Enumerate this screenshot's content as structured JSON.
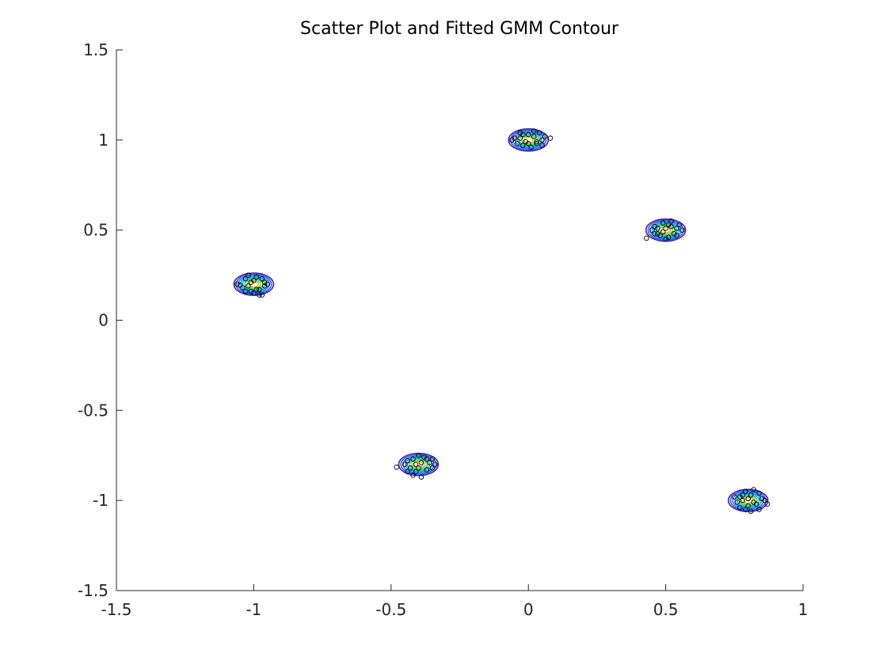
{
  "chart_data": {
    "type": "scatter",
    "title": "Scatter Plot and Fitted GMM Contour",
    "xlabel": "",
    "ylabel": "",
    "xlim": [
      -1.5,
      1
    ],
    "ylim": [
      -1.5,
      1.5
    ],
    "xticks": [
      -1.5,
      -1,
      -0.5,
      0,
      0.5,
      1
    ],
    "yticks": [
      -1.5,
      -1,
      -0.5,
      0,
      0.5,
      1,
      1.5
    ],
    "xtick_labels": [
      "-1.5",
      "-1",
      "-0.5",
      "0",
      "0.5",
      "1"
    ],
    "ytick_labels": [
      "-1.5",
      "-1",
      "-0.5",
      "0",
      "0.5",
      "1",
      "1.5"
    ],
    "grid": false,
    "box": "off",
    "point_marker": "open-circle",
    "point_color": "#000000",
    "contour_colormap": [
      "#3e26a8",
      "#4253e9",
      "#2b7ffd",
      "#13a3dc",
      "#1cbcb0",
      "#40c888",
      "#8ecb5d",
      "#d7c23b"
    ],
    "clusters": [
      {
        "center": [
          -1.0,
          0.2
        ],
        "points": [
          [
            -1.05,
            0.195
          ],
          [
            -0.96,
            0.21
          ],
          [
            -1.03,
            0.23
          ],
          [
            -0.98,
            0.17
          ],
          [
            -1.01,
            0.16
          ],
          [
            -0.97,
            0.14
          ],
          [
            -1.02,
            0.25
          ],
          [
            -0.99,
            0.24
          ],
          [
            -1.04,
            0.18
          ],
          [
            -0.95,
            0.2
          ],
          [
            -1.0,
            0.15
          ],
          [
            -0.97,
            0.23
          ],
          [
            -1.03,
            0.16
          ],
          [
            -1.06,
            0.2
          ],
          [
            -0.96,
            0.19
          ],
          [
            -1.0,
            0.22
          ],
          [
            -0.98,
            0.14
          ],
          [
            -1.02,
            0.19
          ],
          [
            -0.99,
            0.17
          ],
          [
            -1.01,
            0.21
          ]
        ]
      },
      {
        "center": [
          0.0,
          1.0
        ],
        "points": [
          [
            -0.05,
            1.01
          ],
          [
            0.06,
            1.02
          ],
          [
            -0.03,
            1.04
          ],
          [
            0.03,
            0.98
          ],
          [
            0.08,
            1.01
          ],
          [
            0.02,
            1.05
          ],
          [
            -0.02,
            0.97
          ],
          [
            0.05,
            0.97
          ],
          [
            -0.04,
            0.98
          ],
          [
            0.0,
            1.03
          ],
          [
            0.04,
            1.04
          ],
          [
            -0.01,
            0.99
          ],
          [
            0.01,
            0.96
          ],
          [
            -0.06,
            1.0
          ],
          [
            0.05,
            1.0
          ],
          [
            0.02,
            1.02
          ],
          [
            -0.03,
            1.01
          ],
          [
            0.03,
            0.99
          ],
          [
            -0.02,
            1.03
          ],
          [
            0.0,
            0.98
          ]
        ]
      },
      {
        "center": [
          0.5,
          0.5
        ],
        "points": [
          [
            0.43,
            0.455
          ],
          [
            0.47,
            0.48
          ],
          [
            0.55,
            0.53
          ],
          [
            0.52,
            0.55
          ],
          [
            0.54,
            0.51
          ],
          [
            0.46,
            0.52
          ],
          [
            0.49,
            0.54
          ],
          [
            0.51,
            0.46
          ],
          [
            0.48,
            0.47
          ],
          [
            0.53,
            0.48
          ],
          [
            0.5,
            0.45
          ],
          [
            0.56,
            0.5
          ],
          [
            0.45,
            0.5
          ],
          [
            0.52,
            0.52
          ],
          [
            0.47,
            0.51
          ],
          [
            0.49,
            0.49
          ],
          [
            0.54,
            0.47
          ],
          [
            0.46,
            0.48
          ],
          [
            0.51,
            0.53
          ],
          [
            0.5,
            0.51
          ]
        ]
      },
      {
        "center": [
          -0.4,
          -0.8
        ],
        "points": [
          [
            -0.48,
            -0.815
          ],
          [
            -0.35,
            -0.77
          ],
          [
            -0.34,
            -0.8
          ],
          [
            -0.42,
            -0.86
          ],
          [
            -0.39,
            -0.87
          ],
          [
            -0.44,
            -0.78
          ],
          [
            -0.4,
            -0.75
          ],
          [
            -0.37,
            -0.83
          ],
          [
            -0.43,
            -0.82
          ],
          [
            -0.36,
            -0.79
          ],
          [
            -0.41,
            -0.84
          ],
          [
            -0.38,
            -0.76
          ],
          [
            -0.45,
            -0.8
          ],
          [
            -0.4,
            -0.82
          ],
          [
            -0.42,
            -0.77
          ],
          [
            -0.35,
            -0.82
          ],
          [
            -0.39,
            -0.79
          ],
          [
            -0.44,
            -0.84
          ],
          [
            -0.37,
            -0.77
          ],
          [
            -0.41,
            -0.8
          ]
        ]
      },
      {
        "center": [
          0.8,
          -1.0
        ],
        "points": [
          [
            0.87,
            -1.02
          ],
          [
            0.77,
            -1.04
          ],
          [
            0.75,
            -0.98
          ],
          [
            0.78,
            -0.97
          ],
          [
            0.81,
            -1.06
          ],
          [
            0.84,
            -1.05
          ],
          [
            0.82,
            -0.94
          ],
          [
            0.79,
            -0.95
          ],
          [
            0.85,
            -0.99
          ],
          [
            0.76,
            -1.01
          ],
          [
            0.8,
            -1.03
          ],
          [
            0.83,
            -1.02
          ],
          [
            0.78,
            -1.0
          ],
          [
            0.81,
            -0.97
          ],
          [
            0.79,
            -1.05
          ],
          [
            0.84,
            -0.96
          ],
          [
            0.8,
            -0.99
          ],
          [
            0.77,
            -0.98
          ],
          [
            0.82,
            -1.01
          ],
          [
            0.86,
            -1.0
          ]
        ]
      }
    ]
  }
}
